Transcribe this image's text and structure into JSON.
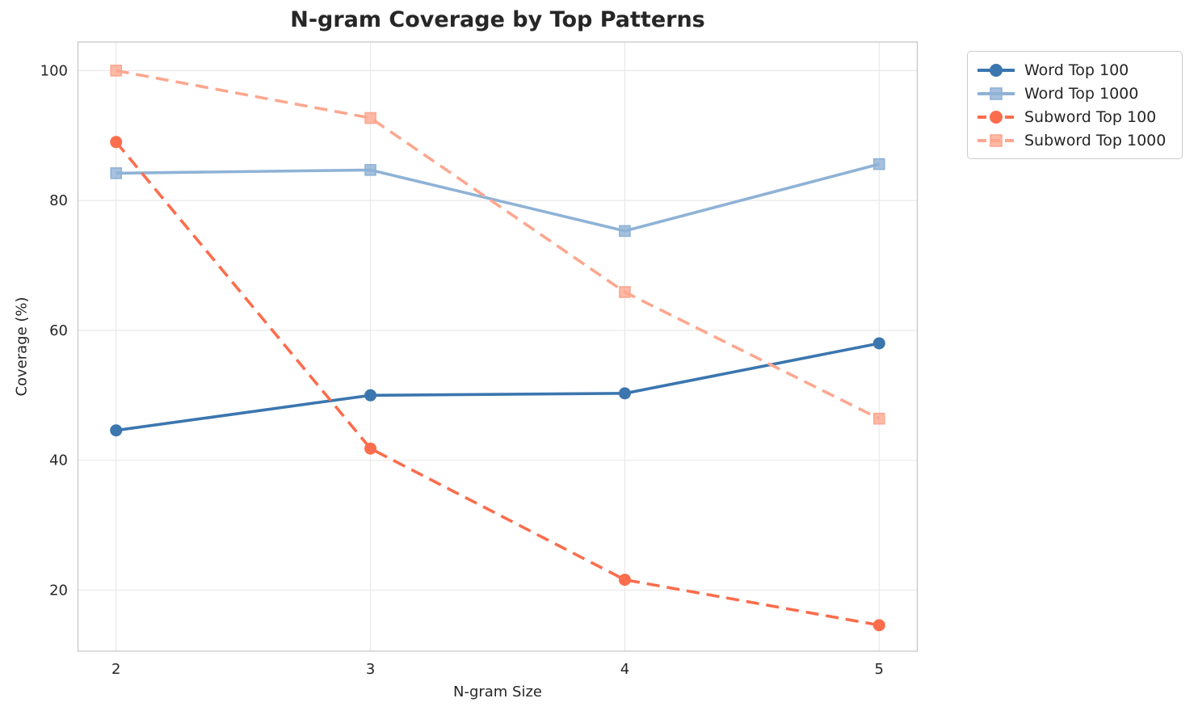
{
  "chart_data": {
    "type": "line",
    "title": "N-gram Coverage by Top Patterns",
    "xlabel": "N-gram Size",
    "ylabel": "Coverage (%)",
    "x": [
      2,
      3,
      4,
      5
    ],
    "xticks": [
      2,
      3,
      4,
      5
    ],
    "yticks": [
      20,
      40,
      60,
      80,
      100
    ],
    "xlim": [
      1.85,
      5.15
    ],
    "ylim": [
      10.6,
      104.4
    ],
    "grid": true,
    "legend_position": "upper-right-outside",
    "series": [
      {
        "name": "Word Top 100",
        "values": [
          44.6,
          50.0,
          50.3,
          58.0
        ],
        "color": "#3b76af",
        "line_style": "solid",
        "marker": "circle"
      },
      {
        "name": "Word Top 1000",
        "values": [
          84.2,
          84.7,
          75.3,
          85.6
        ],
        "color": "#8fb2d6",
        "line_style": "solid",
        "marker": "square"
      },
      {
        "name": "Subword Top 100",
        "values": [
          89.0,
          41.8,
          21.6,
          14.6
        ],
        "color": "#fb6d4c",
        "line_style": "dashed",
        "marker": "circle"
      },
      {
        "name": "Subword Top 1000",
        "values": [
          100.0,
          92.7,
          65.9,
          46.4
        ],
        "color": "#fca78f",
        "line_style": "dashed",
        "marker": "square"
      }
    ],
    "colors": {
      "grid": "#e8e8ea",
      "spine": "#c8c8c8",
      "text": "#262626"
    }
  }
}
